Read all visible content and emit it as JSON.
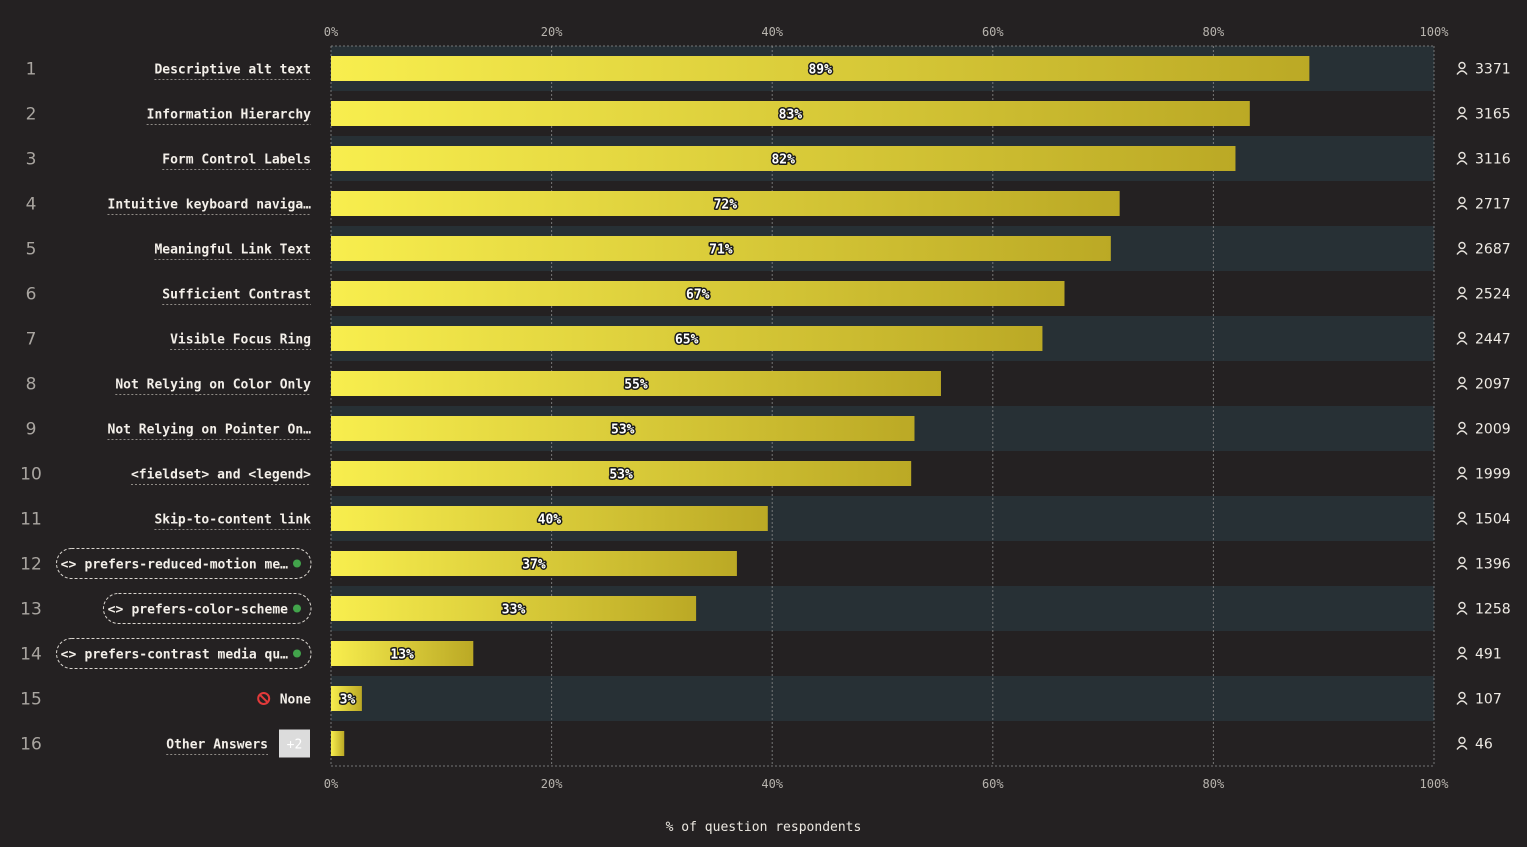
{
  "chart_data": {
    "type": "bar",
    "orientation": "horizontal",
    "xlabel": "% of question respondents",
    "xlim": [
      0,
      100
    ],
    "ticks": [
      "0%",
      "20%",
      "40%",
      "60%",
      "80%",
      "100%"
    ],
    "grid": true,
    "categories": [
      {
        "rank": "1",
        "label": "Descriptive alt text",
        "kind": "text"
      },
      {
        "rank": "2",
        "label": "Information Hierarchy",
        "kind": "text"
      },
      {
        "rank": "3",
        "label": "Form Control Labels",
        "kind": "text"
      },
      {
        "rank": "4",
        "label": "Intuitive keyboard naviga…",
        "kind": "text"
      },
      {
        "rank": "5",
        "label": "Meaningful Link Text",
        "kind": "text"
      },
      {
        "rank": "6",
        "label": "Sufficient Contrast",
        "kind": "text"
      },
      {
        "rank": "7",
        "label": "Visible Focus Ring",
        "kind": "text"
      },
      {
        "rank": "8",
        "label": "Not Relying on Color Only",
        "kind": "text"
      },
      {
        "rank": "9",
        "label": "Not Relying on Pointer On…",
        "kind": "text"
      },
      {
        "rank": "10",
        "label": "<fieldset> and <legend>",
        "kind": "text"
      },
      {
        "rank": "11",
        "label": "Skip-to-content link",
        "kind": "text"
      },
      {
        "rank": "12",
        "label": "prefers-reduced-motion me…",
        "kind": "feature",
        "icon": "code-brackets-icon"
      },
      {
        "rank": "13",
        "label": "prefers-color-scheme",
        "kind": "feature",
        "icon": "code-brackets-icon"
      },
      {
        "rank": "14",
        "label": "prefers-contrast media qu…",
        "kind": "feature",
        "icon": "code-brackets-icon"
      },
      {
        "rank": "15",
        "label": "None",
        "kind": "none",
        "icon": "no-entry-icon"
      },
      {
        "rank": "16",
        "label": "Other Answers",
        "kind": "other",
        "badge": "+2"
      }
    ],
    "series": [
      {
        "percent_labels": [
          "89%",
          "83%",
          "82%",
          "72%",
          "71%",
          "67%",
          "65%",
          "55%",
          "53%",
          "53%",
          "40%",
          "37%",
          "33%",
          "13%",
          "3%",
          ""
        ],
        "values": [
          88.7,
          83.3,
          82.0,
          71.5,
          70.7,
          66.5,
          64.5,
          55.3,
          52.9,
          52.6,
          39.6,
          36.8,
          33.1,
          12.9,
          2.8,
          1.2
        ],
        "respondents": [
          "3371",
          "3165",
          "3116",
          "2717",
          "2687",
          "2524",
          "2447",
          "2097",
          "2009",
          "1999",
          "1504",
          "1396",
          "1258",
          "491",
          "107",
          "46"
        ]
      }
    ],
    "colors": {
      "background": "#242122",
      "band": "#273035",
      "bar_start": "#f8ee4e",
      "bar_end": "#bba925",
      "feature_dot": "#42a44b",
      "none_icon": "#e23a3a",
      "badge_bg": "#dcdcdc",
      "grid": "#8a8a8a"
    },
    "respondent_icon": "user-icon"
  }
}
